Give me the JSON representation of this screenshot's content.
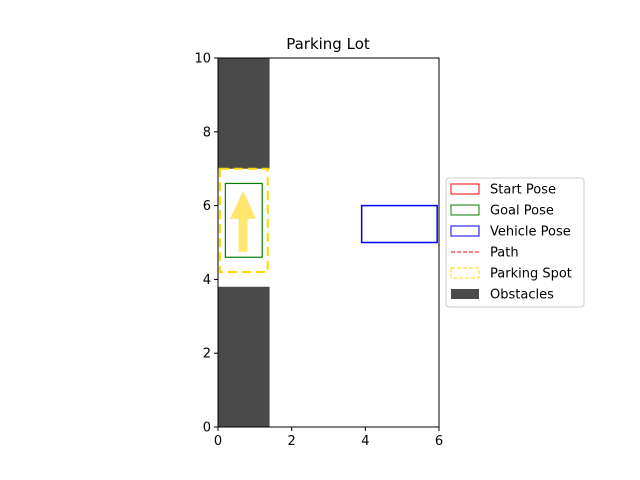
{
  "chart_data": {
    "type": "scatter",
    "title": "Parking Lot",
    "xlabel": "",
    "ylabel": "",
    "xlim": [
      0,
      6
    ],
    "ylim": [
      0,
      10
    ],
    "x_ticks": [
      0,
      2,
      4,
      6
    ],
    "y_ticks": [
      0,
      2,
      4,
      6,
      8,
      10
    ],
    "x_tick_labels": [
      "0",
      "2",
      "4",
      "6"
    ],
    "y_tick_labels": [
      "0",
      "2",
      "4",
      "6",
      "8",
      "10"
    ],
    "grid": false,
    "legend_position": "right",
    "obstacles": [
      {
        "x0": 0,
        "y0": 7.0,
        "x1": 1.4,
        "y1": 10
      },
      {
        "x0": 0,
        "y0": 0,
        "x1": 1.4,
        "y1": 3.8
      }
    ],
    "parking_spot": {
      "x0": 0.05,
      "y0": 4.2,
      "x1": 1.35,
      "y1": 7.0
    },
    "goal_pose": {
      "x0": 0.2,
      "y0": 4.6,
      "x1": 1.2,
      "y1": 6.6
    },
    "vehicle_pose": {
      "x0": 3.9,
      "y0": 5.0,
      "x1": 5.95,
      "y1": 6.0
    },
    "arrow": {
      "x": 0.68,
      "y_start": 4.75,
      "y_end": 6.4
    },
    "legend": [
      {
        "label": "Start Pose",
        "style": "box",
        "color": "#ff0000"
      },
      {
        "label": "Goal Pose",
        "style": "box",
        "color": "#008000"
      },
      {
        "label": "Vehicle Pose",
        "style": "box",
        "color": "#0000ff"
      },
      {
        "label": "Path",
        "style": "dashed-line",
        "color": "#ff0000"
      },
      {
        "label": "Parking Spot",
        "style": "dashed-box",
        "color": "#ffd700"
      },
      {
        "label": "Obstacles",
        "style": "filled",
        "color": "#4a4a4a"
      }
    ],
    "colors": {
      "obstacle": "#4a4a4a",
      "parking_spot": "#ffd700",
      "goal": "#008000",
      "vehicle": "#0000ff",
      "start": "#ff0000",
      "arrow": "#ffe566"
    }
  }
}
